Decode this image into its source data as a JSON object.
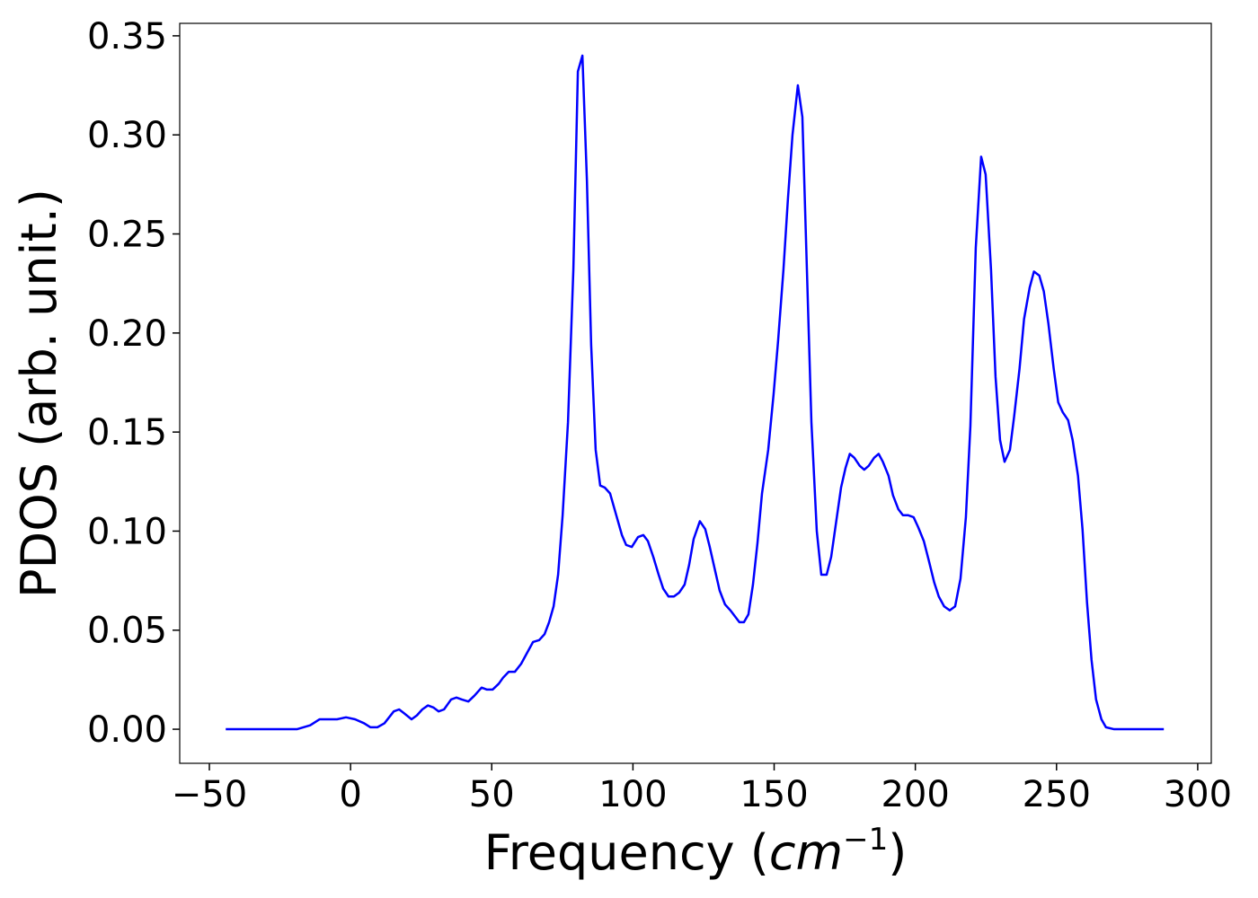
{
  "chart_data": {
    "type": "line",
    "xlabel": {
      "text": "Frequency (",
      "unit": "cm",
      "exponent": "−1",
      "close": ")"
    },
    "ylabel": "PDOS (arb. unit.)",
    "xlim": [
      -60.5,
      304.8
    ],
    "ylim": [
      -0.0172,
      0.3563
    ],
    "xticks": [
      {
        "value": -50,
        "label": "−50"
      },
      0,
      50,
      100,
      150,
      200,
      250,
      300
    ],
    "yticks": [
      {
        "value": 0,
        "label": "0.00"
      },
      {
        "value": 0.05,
        "label": "0.05"
      },
      {
        "value": 0.1,
        "label": "0.10"
      },
      {
        "value": 0.15,
        "label": "0.15"
      },
      {
        "value": 0.2,
        "label": "0.20"
      },
      {
        "value": 0.25,
        "label": "0.25"
      },
      {
        "value": 0.3,
        "label": "0.30"
      },
      {
        "value": 0.35,
        "label": "0.35"
      }
    ],
    "grid": false,
    "series": [
      {
        "color": "#0000ff",
        "x": [
          -44.2,
          -19,
          -14.3,
          -11,
          -8.9,
          -4.8,
          -1.6,
          1.6,
          4.8,
          7,
          9.5,
          12,
          15.3,
          17.2,
          19,
          21.6,
          23.5,
          25.4,
          27.4,
          29.3,
          31.2,
          33.1,
          35.6,
          37.5,
          39.4,
          41.7,
          43.9,
          46.4,
          48.3,
          50.3,
          52.5,
          54,
          56,
          58.2,
          60.4,
          62.3,
          64.6,
          66.8,
          68.7,
          70.3,
          71.9,
          73.5,
          75.1,
          77,
          78.9,
          80.5,
          82.1,
          83.7,
          85.2,
          86.8,
          88.4,
          90,
          91.9,
          94.1,
          96.1,
          97.6,
          99.6,
          101.8,
          103.7,
          105.3,
          107.2,
          109.1,
          110.7,
          112.6,
          114.5,
          116.4,
          118.3,
          119.9,
          121.5,
          123.7,
          125.6,
          127.2,
          129.1,
          130.7,
          132.6,
          134.5,
          136.1,
          137.7,
          139.3,
          140.9,
          142.5,
          144.1,
          145.7,
          147.9,
          149.8,
          151.4,
          153.3,
          154.9,
          156.5,
          158.4,
          160,
          161.6,
          163.2,
          165.1,
          166.7,
          168.6,
          170.2,
          171.8,
          173.7,
          175.3,
          176.8,
          178.4,
          180.3,
          181.9,
          183.5,
          185.4,
          187,
          188.5,
          190.5,
          192.1,
          194,
          195.6,
          197.5,
          199.4,
          201,
          203,
          204.8,
          206.7,
          208.3,
          210.2,
          212.2,
          214.1,
          216,
          217.9,
          219.5,
          221.4,
          223.3,
          224.9,
          226.8,
          228.4,
          230,
          231.6,
          233.5,
          235,
          236.9,
          238.5,
          240.5,
          242,
          243.9,
          245.5,
          247.1,
          249,
          250.6,
          252.2,
          254.1,
          255.7,
          257.6,
          259.2,
          260.8,
          262.4,
          264,
          265.9,
          267.5,
          270.4,
          288
        ],
        "values": [
          0,
          0,
          0.002,
          0.005,
          0.005,
          0.005,
          0.006,
          0.005,
          0.003,
          0.001,
          0.001,
          0.003,
          0.009,
          0.01,
          0.008,
          0.005,
          0.007,
          0.01,
          0.012,
          0.011,
          0.009,
          0.01,
          0.015,
          0.016,
          0.015,
          0.014,
          0.017,
          0.021,
          0.02,
          0.02,
          0.023,
          0.026,
          0.029,
          0.029,
          0.033,
          0.038,
          0.044,
          0.045,
          0.048,
          0.054,
          0.062,
          0.078,
          0.108,
          0.155,
          0.232,
          0.332,
          0.34,
          0.277,
          0.194,
          0.141,
          0.123,
          0.122,
          0.119,
          0.108,
          0.098,
          0.093,
          0.092,
          0.097,
          0.098,
          0.095,
          0.087,
          0.078,
          0.071,
          0.067,
          0.067,
          0.069,
          0.073,
          0.083,
          0.096,
          0.105,
          0.101,
          0.092,
          0.08,
          0.07,
          0.063,
          0.06,
          0.057,
          0.054,
          0.054,
          0.058,
          0.073,
          0.094,
          0.119,
          0.141,
          0.169,
          0.196,
          0.232,
          0.268,
          0.3,
          0.325,
          0.309,
          0.232,
          0.155,
          0.1,
          0.078,
          0.078,
          0.087,
          0.103,
          0.122,
          0.132,
          0.139,
          0.137,
          0.133,
          0.131,
          0.133,
          0.137,
          0.139,
          0.135,
          0.128,
          0.118,
          0.111,
          0.108,
          0.108,
          0.107,
          0.102,
          0.095,
          0.085,
          0.074,
          0.067,
          0.062,
          0.06,
          0.062,
          0.076,
          0.107,
          0.153,
          0.243,
          0.289,
          0.28,
          0.232,
          0.178,
          0.146,
          0.135,
          0.141,
          0.158,
          0.182,
          0.207,
          0.223,
          0.231,
          0.229,
          0.221,
          0.205,
          0.182,
          0.165,
          0.16,
          0.156,
          0.146,
          0.128,
          0.101,
          0.064,
          0.035,
          0.015,
          0.005,
          0.001,
          0,
          0
        ]
      }
    ]
  }
}
